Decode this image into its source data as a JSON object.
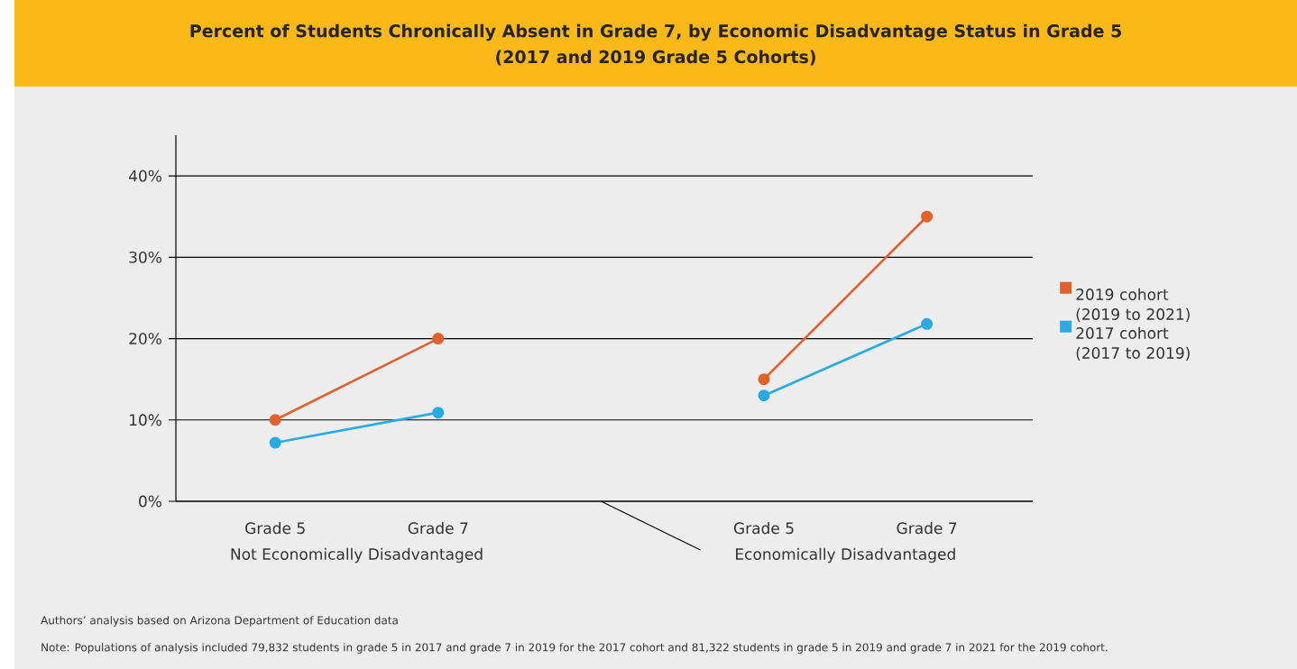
{
  "chart_data": {
    "type": "line",
    "title": "Percent of Students Chronically Absent in Grade 7, by Economic Disadvantage Status in Grade 5",
    "subtitle": "(2017 and 2019 Grade 5 Cohorts)",
    "categories": [
      "Grade 5",
      "Grade 7",
      null,
      "Grade 5",
      "Grade 7"
    ],
    "series": [
      {
        "name": "2019 cohort (2019 to 2021)",
        "color": "#e0622a",
        "values": [
          10,
          20,
          null,
          15,
          35
        ]
      },
      {
        "name": "2017 cohort (2017 to 2019)",
        "color": "#29abe2",
        "values": [
          7.2,
          10.9,
          null,
          13,
          21.8
        ]
      }
    ],
    "ylim": [
      0,
      45
    ],
    "yticks": [
      {
        "value": 0,
        "label": "0%"
      },
      {
        "value": 10,
        "label": "10%"
      },
      {
        "value": 20,
        "label": "20%"
      },
      {
        "value": 30,
        "label": "30%"
      },
      {
        "value": 40,
        "label": "40%"
      }
    ],
    "annotations": [
      "Not Economically Disadvantaged",
      "Economically Disadvantaged",
      "Authors’ analysis based on Arizona Department of Education data",
      "Note: Populations of analysis included 79,832 students in grade 5 in 2017 and grade 7 in 2019 for the 2017 cohort and 81,322 students in grade 5 in 2019 and grade 7 in 2021 for the 2019 cohort."
    ],
    "grid": "y",
    "legend": "right",
    "marker": "circle",
    "line_style": "solid"
  }
}
